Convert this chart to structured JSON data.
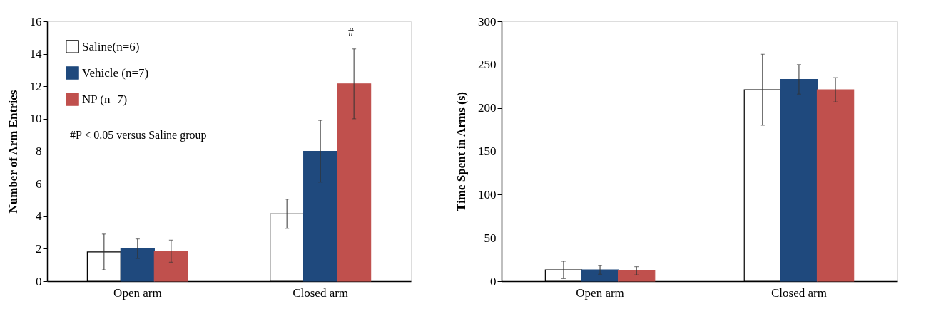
{
  "chart_data": [
    {
      "type": "bar",
      "ylabel": "Number of Arm Entries",
      "categories": [
        "Open arm",
        "Closed arm"
      ],
      "ylim": [
        0,
        16
      ],
      "yticks": [
        0,
        2,
        4,
        6,
        8,
        10,
        12,
        14,
        16
      ],
      "grid": false,
      "legend": "top left",
      "series": [
        {
          "name": "Saline(n=6)",
          "color": "#ffffff",
          "values": [
            1.8,
            4.15
          ],
          "errors": [
            1.1,
            0.9
          ]
        },
        {
          "name": "Vehicle (n=7)",
          "color": "#1f497d",
          "values": [
            2.0,
            8.0
          ],
          "errors": [
            0.6,
            1.9
          ]
        },
        {
          "name": "NP (n=7)",
          "color": "#c0504d",
          "values": [
            1.85,
            12.15
          ],
          "errors": [
            0.68,
            2.15
          ]
        }
      ],
      "annotations": [
        "#",
        "#P < 0.05 versus Saline group"
      ]
    },
    {
      "type": "bar",
      "ylabel": "Time Spent in Arms (s)",
      "categories": [
        "Open arm",
        "Closed arm"
      ],
      "ylim": [
        0,
        300
      ],
      "yticks": [
        0,
        50,
        100,
        150,
        200,
        250,
        300
      ],
      "grid": false,
      "legend": false,
      "series": [
        {
          "color": "#ffffff",
          "values": [
            13,
            221
          ],
          "errors": [
            10,
            41
          ]
        },
        {
          "color": "#1f497d",
          "values": [
            13,
            233
          ],
          "errors": [
            5,
            17
          ]
        },
        {
          "color": "#c0504d",
          "values": [
            12,
            221
          ],
          "errors": [
            4.7,
            14
          ]
        }
      ]
    }
  ]
}
